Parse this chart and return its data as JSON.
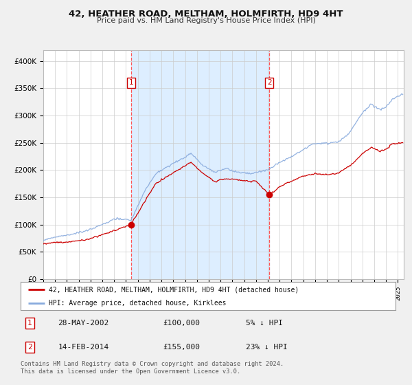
{
  "title": "42, HEATHER ROAD, MELTHAM, HOLMFIRTH, HD9 4HT",
  "subtitle": "Price paid vs. HM Land Registry's House Price Index (HPI)",
  "bg_color": "#f0f0f0",
  "plot_bg_color": "#ffffff",
  "shade_color": "#ddeeff",
  "grid_color": "#cccccc",
  "red_line_color": "#cc0000",
  "blue_line_color": "#88aadd",
  "dashed_color": "#ff5555",
  "sale1_date_label": "28-MAY-2002",
  "sale1_price_label": "£100,000",
  "sale1_hpi_label": "5% ↓ HPI",
  "sale2_date_label": "14-FEB-2014",
  "sale2_price_label": "£155,000",
  "sale2_hpi_label": "23% ↓ HPI",
  "legend_red_label": "42, HEATHER ROAD, MELTHAM, HOLMFIRTH, HD9 4HT (detached house)",
  "legend_blue_label": "HPI: Average price, detached house, Kirklees",
  "footer": "Contains HM Land Registry data © Crown copyright and database right 2024.\nThis data is licensed under the Open Government Licence v3.0.",
  "ylim": [
    0,
    420000
  ],
  "yticks": [
    0,
    50000,
    100000,
    150000,
    200000,
    250000,
    300000,
    350000,
    400000
  ],
  "sale1_x": 2002.42,
  "sale1_y": 100000,
  "sale2_x": 2014.12,
  "sale2_y": 155000,
  "xmin": 1995.0,
  "xmax": 2025.5
}
